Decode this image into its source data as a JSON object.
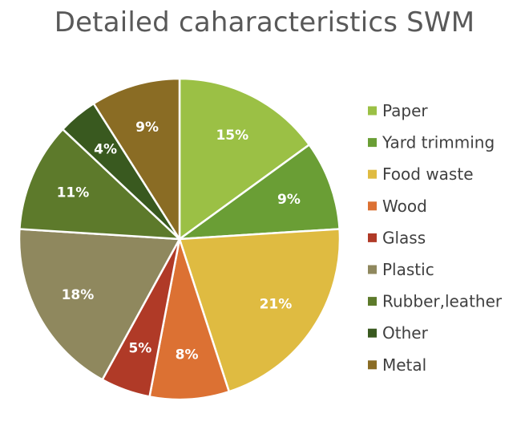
{
  "chart_data": {
    "type": "pie",
    "title": "Detailed caharacteristics SWM",
    "legend_position": "right",
    "slices": [
      {
        "name": "Paper",
        "value": 15,
        "label": "15%",
        "color": "#9bc045"
      },
      {
        "name": "Yard trimming",
        "value": 9,
        "label": "9%",
        "color": "#6a9e35"
      },
      {
        "name": "Food waste",
        "value": 21,
        "label": "21%",
        "color": "#dfbb41"
      },
      {
        "name": "Wood",
        "value": 8,
        "label": "8%",
        "color": "#dc7133"
      },
      {
        "name": "Glass",
        "value": 5,
        "label": "5%",
        "color": "#b03a27"
      },
      {
        "name": "Plastic",
        "value": 18,
        "label": "18%",
        "color": "#8f885e"
      },
      {
        "name": "Rubber,leather",
        "value": 11,
        "label": "11%",
        "color": "#5d7a2b"
      },
      {
        "name": "Other",
        "value": 4,
        "label": "4%",
        "color": "#39591f"
      },
      {
        "name": "Metal",
        "value": 9,
        "label": "9%",
        "color": "#8a6c24"
      }
    ]
  }
}
